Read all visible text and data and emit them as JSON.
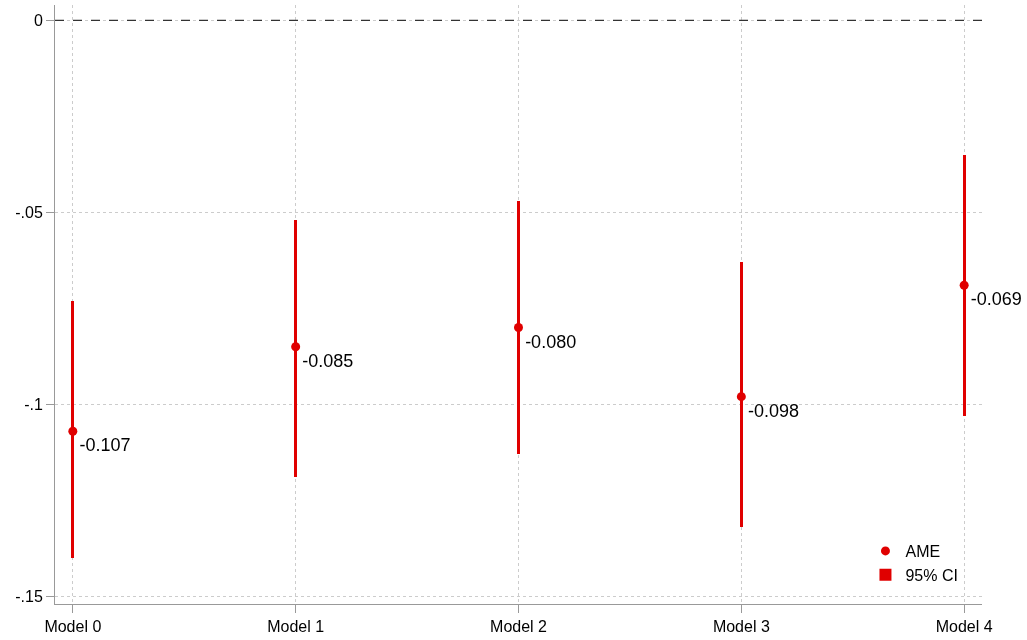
{
  "chart_data": {
    "type": "scatter",
    "categories": [
      "Model 0",
      "Model 1",
      "Model 2",
      "Model 3",
      "Model 4"
    ],
    "series": [
      {
        "name": "AME",
        "color": "#e00000",
        "values": [
          -0.107,
          -0.085,
          -0.08,
          -0.098,
          -0.069
        ],
        "value_labels": [
          "-0.107",
          "-0.085",
          "-0.080",
          "-0.098",
          "-0.069"
        ],
        "marker": "circle"
      },
      {
        "name": "95% CI",
        "type": "bar",
        "color": "#e00000",
        "base": [
          -0.14,
          -0.119,
          -0.113,
          -0.132,
          -0.103
        ],
        "values": [
          0.067,
          0.067,
          0.066,
          0.069,
          0.068
        ]
      }
    ],
    "ylim": [
      -0.152,
      0.004
    ],
    "yticks": [
      {
        "value": 0,
        "label": "0"
      },
      {
        "value": -0.05,
        "label": "-.05"
      },
      {
        "value": -0.1,
        "label": "-.1"
      },
      {
        "value": -0.15,
        "label": "-.15"
      }
    ],
    "ref_lines": [
      {
        "axis": "y",
        "value": 0,
        "color": "#333333",
        "line_style": "dashed"
      }
    ],
    "grid": true,
    "legend": "bottom right"
  }
}
